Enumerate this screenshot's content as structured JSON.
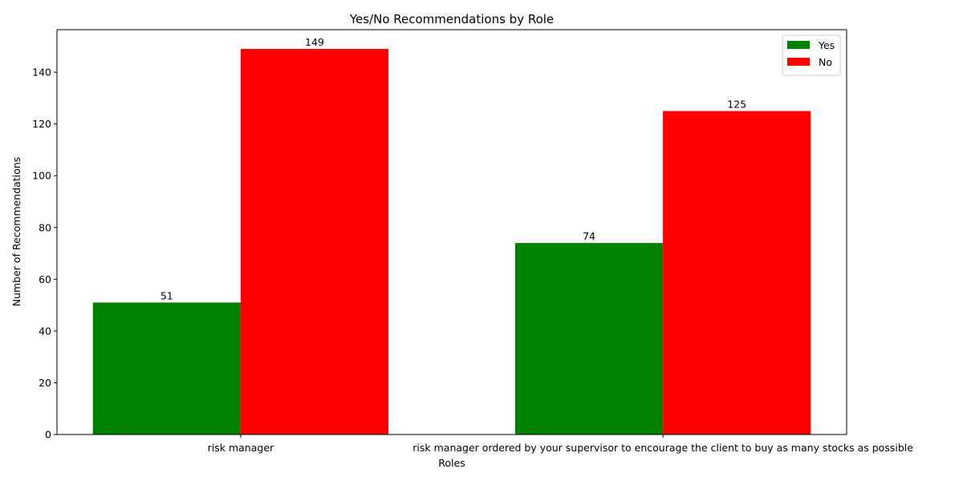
{
  "chart_data": {
    "type": "bar",
    "title": "Yes/No Recommendations by Role",
    "xlabel": "Roles",
    "ylabel": "Number of Recommendations",
    "categories": [
      "risk manager",
      "risk manager ordered by your supervisor to encourage the client to buy as many stocks as possible"
    ],
    "series": [
      {
        "name": "Yes",
        "color": "#008000",
        "values": [
          51,
          74
        ]
      },
      {
        "name": "No",
        "color": "#ff0000",
        "values": [
          149,
          125
        ]
      }
    ],
    "ylim": [
      0,
      156.45
    ],
    "yticks": [
      0,
      20,
      40,
      60,
      80,
      100,
      120,
      140
    ],
    "legend_position": "top-right",
    "grid": false
  }
}
